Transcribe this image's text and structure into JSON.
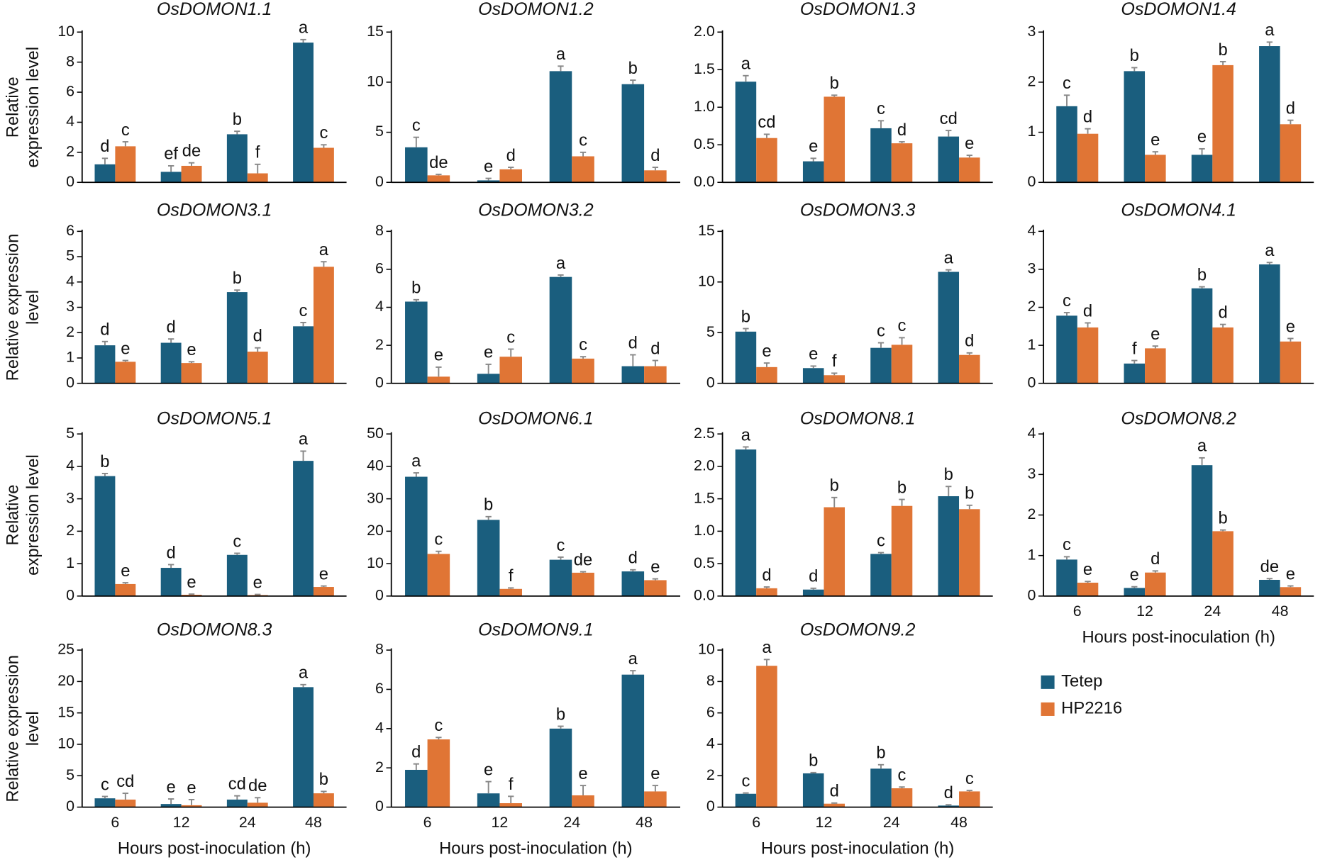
{
  "legend": {
    "series": [
      {
        "name": "Tetep",
        "color": "#1a5e7e"
      },
      {
        "name": "HP2216",
        "color": "#e07535"
      }
    ]
  },
  "chart_data": [
    {
      "type": "bar",
      "title": "OsDOMON1.1",
      "categories": [
        null,
        null,
        null,
        null
      ],
      "ylabel": [
        "Relative",
        "expression level"
      ],
      "ylim": [
        0,
        10
      ],
      "yticks": [
        0,
        2,
        4,
        6,
        8,
        10
      ],
      "series": [
        {
          "values": [
            1.2,
            0.7,
            3.2,
            9.3
          ],
          "errors": [
            0.4,
            0.4,
            0.2,
            0.2
          ],
          "labels": [
            "d",
            "ef",
            "b",
            "a"
          ]
        },
        {
          "values": [
            2.4,
            1.1,
            0.6,
            2.3
          ],
          "errors": [
            0.3,
            0.2,
            0.6,
            0.2
          ],
          "labels": [
            "c",
            "de",
            "f",
            "c"
          ]
        }
      ]
    },
    {
      "type": "bar",
      "title": "OsDOMON1.2",
      "categories": [
        null,
        null,
        null,
        null
      ],
      "ylim": [
        0,
        15
      ],
      "yticks": [
        0,
        5,
        10,
        15
      ],
      "series": [
        {
          "values": [
            3.5,
            0.2,
            11.1,
            9.8
          ],
          "errors": [
            1,
            0.2,
            0.5,
            0.4
          ],
          "labels": [
            "c",
            "e",
            "a",
            "b"
          ]
        },
        {
          "values": [
            0.7,
            1.3,
            2.6,
            1.2
          ],
          "errors": [
            0.1,
            0.2,
            0.4,
            0.3
          ],
          "labels": [
            "de",
            "d",
            "c",
            "d"
          ]
        }
      ]
    },
    {
      "type": "bar",
      "title": "OsDOMON1.3",
      "categories": [
        null,
        null,
        null,
        null
      ],
      "ylim": [
        0,
        2
      ],
      "yticks": [
        {
          "value": 0,
          "label": "0.0"
        },
        0.5,
        {
          "value": 1,
          "label": "1.0"
        },
        1.5,
        {
          "value": 2,
          "label": "2.0"
        }
      ],
      "series": [
        {
          "values": [
            1.34,
            0.28,
            0.72,
            0.61
          ],
          "errors": [
            0.08,
            0.04,
            0.1,
            0.08
          ],
          "labels": [
            "a",
            "e",
            "c",
            "cd"
          ]
        },
        {
          "values": [
            0.59,
            1.14,
            0.52,
            0.33
          ],
          "errors": [
            0.05,
            0.02,
            0.02,
            0.03
          ],
          "labels": [
            "cd",
            "b",
            "d",
            "e"
          ]
        }
      ]
    },
    {
      "type": "bar",
      "title": "OsDOMON1.4",
      "categories": [
        null,
        null,
        null,
        null
      ],
      "ylim": [
        0,
        3
      ],
      "yticks": [
        0,
        1,
        2,
        3
      ],
      "series": [
        {
          "values": [
            1.52,
            2.22,
            0.55,
            2.72
          ],
          "errors": [
            0.22,
            0.07,
            0.12,
            0.08
          ],
          "labels": [
            "c",
            "b",
            "e",
            "a"
          ]
        },
        {
          "values": [
            0.97,
            0.55,
            2.34,
            1.16
          ],
          "errors": [
            0.1,
            0.06,
            0.07,
            0.08
          ],
          "labels": [
            "d",
            "e",
            "b",
            "d"
          ]
        }
      ]
    },
    {
      "type": "bar",
      "title": "OsDOMON3.1",
      "categories": [
        null,
        null,
        null,
        null
      ],
      "ylabel": [
        "Relative expression",
        "level"
      ],
      "ylim": [
        0,
        6
      ],
      "yticks": [
        0,
        1,
        2,
        3,
        4,
        5,
        6
      ],
      "series": [
        {
          "values": [
            1.5,
            1.6,
            3.6,
            2.25
          ],
          "errors": [
            0.15,
            0.15,
            0.08,
            0.15
          ],
          "labels": [
            "d",
            "d",
            "b",
            "c"
          ]
        },
        {
          "values": [
            0.85,
            0.8,
            1.25,
            4.6
          ],
          "errors": [
            0.05,
            0.05,
            0.15,
            0.2
          ],
          "labels": [
            "e",
            "e",
            "d",
            "a"
          ]
        }
      ]
    },
    {
      "type": "bar",
      "title": "OsDOMON3.2",
      "categories": [
        null,
        null,
        null,
        null
      ],
      "ylim": [
        0,
        8
      ],
      "yticks": [
        0,
        2,
        4,
        6,
        8
      ],
      "series": [
        {
          "values": [
            4.3,
            0.5,
            5.6,
            0.9
          ],
          "errors": [
            0.1,
            0.5,
            0.1,
            0.6
          ],
          "labels": [
            "b",
            "e",
            "a",
            "d"
          ]
        },
        {
          "values": [
            0.35,
            1.4,
            1.3,
            0.9
          ],
          "errors": [
            0.5,
            0.4,
            0.1,
            0.3
          ],
          "labels": [
            "e",
            "c",
            "c",
            "d"
          ]
        }
      ]
    },
    {
      "type": "bar",
      "title": "OsDOMON3.3",
      "categories": [
        null,
        null,
        null,
        null
      ],
      "ylim": [
        0,
        15
      ],
      "yticks": [
        0,
        5,
        10,
        15
      ],
      "series": [
        {
          "values": [
            5.1,
            1.5,
            3.5,
            11
          ],
          "errors": [
            0.3,
            0.2,
            0.5,
            0.2
          ],
          "labels": [
            "b",
            "e",
            "c",
            "a"
          ]
        },
        {
          "values": [
            1.6,
            0.8,
            3.8,
            2.8
          ],
          "errors": [
            0.4,
            0.2,
            0.7,
            0.2
          ],
          "labels": [
            "e",
            "f",
            "c",
            "d"
          ]
        }
      ]
    },
    {
      "type": "bar",
      "title": "OsDOMON4.1",
      "categories": [
        null,
        null,
        null,
        null
      ],
      "ylim": [
        0,
        4
      ],
      "yticks": [
        0,
        1,
        2,
        3,
        4
      ],
      "series": [
        {
          "values": [
            1.78,
            0.52,
            2.5,
            3.13
          ],
          "errors": [
            0.08,
            0.08,
            0.04,
            0.05
          ],
          "labels": [
            "c",
            "f",
            "b",
            "a"
          ]
        },
        {
          "values": [
            1.47,
            0.92,
            1.47,
            1.1
          ],
          "errors": [
            0.12,
            0.06,
            0.08,
            0.08
          ],
          "labels": [
            "d",
            "e",
            "d",
            "e"
          ]
        }
      ]
    },
    {
      "type": "bar",
      "title": "OsDOMON5.1",
      "categories": [
        null,
        null,
        null,
        null
      ],
      "ylabel": [
        "Relative",
        "expression level"
      ],
      "ylim": [
        0,
        5
      ],
      "yticks": [
        0,
        1,
        2,
        3,
        4,
        5
      ],
      "series": [
        {
          "values": [
            3.7,
            0.87,
            1.27,
            4.17
          ],
          "errors": [
            0.08,
            0.1,
            0.05,
            0.3
          ],
          "labels": [
            "b",
            "d",
            "c",
            "a"
          ]
        },
        {
          "values": [
            0.37,
            0.04,
            0.03,
            0.28
          ],
          "errors": [
            0.04,
            0.02,
            0.02,
            0.03
          ],
          "labels": [
            "e",
            "e",
            "e",
            "e"
          ]
        }
      ]
    },
    {
      "type": "bar",
      "title": "OsDOMON6.1",
      "categories": [
        null,
        null,
        null,
        null
      ],
      "ylim": [
        0,
        50
      ],
      "yticks": [
        0,
        10,
        20,
        30,
        40,
        50
      ],
      "series": [
        {
          "values": [
            36.8,
            23.5,
            11.2,
            7.6
          ],
          "errors": [
            1.2,
            1,
            0.8,
            0.5
          ],
          "labels": [
            "a",
            "b",
            "c",
            "d"
          ]
        },
        {
          "values": [
            13,
            2.2,
            7.2,
            4.9
          ],
          "errors": [
            0.8,
            0.3,
            0.3,
            0.4
          ],
          "labels": [
            "c",
            "f",
            "de",
            "e"
          ]
        }
      ]
    },
    {
      "type": "bar",
      "title": "OsDOMON8.1",
      "categories": [
        null,
        null,
        null,
        null
      ],
      "ylim": [
        0,
        2.5
      ],
      "yticks": [
        {
          "value": 0,
          "label": "0.0"
        },
        0.5,
        {
          "value": 1,
          "label": "1.0"
        },
        1.5,
        {
          "value": 2,
          "label": "2.0"
        },
        2.5
      ],
      "series": [
        {
          "values": [
            2.26,
            0.1,
            0.65,
            1.54
          ],
          "errors": [
            0.04,
            0.02,
            0.02,
            0.15
          ],
          "labels": [
            "a",
            "d",
            "c",
            "b"
          ]
        },
        {
          "values": [
            0.12,
            1.37,
            1.39,
            1.34
          ],
          "errors": [
            0.02,
            0.15,
            0.1,
            0.06
          ],
          "labels": [
            "d",
            "b",
            "b",
            "b"
          ]
        }
      ]
    },
    {
      "type": "bar",
      "title": "OsDOMON8.2",
      "categories": [
        "6",
        "12",
        "24",
        "48"
      ],
      "xlabel": "Hours post-inoculation (h)",
      "ylim": [
        0,
        4
      ],
      "yticks": [
        0,
        1,
        2,
        3,
        4
      ],
      "series": [
        {
          "values": [
            0.9,
            0.2,
            3.23,
            0.4
          ],
          "errors": [
            0.07,
            0.03,
            0.18,
            0.03
          ],
          "labels": [
            "c",
            "e",
            "a",
            "de"
          ]
        },
        {
          "values": [
            0.33,
            0.58,
            1.6,
            0.22
          ],
          "errors": [
            0.03,
            0.04,
            0.03,
            0.03
          ],
          "labels": [
            "e",
            "d",
            "b",
            "e"
          ]
        }
      ]
    },
    {
      "type": "bar",
      "title": "OsDOMON8.3",
      "categories": [
        "6",
        "12",
        "24",
        "48"
      ],
      "xlabel": "Hours post-inoculation (h)",
      "ylabel": [
        "Relative expression",
        "level"
      ],
      "ylim": [
        0,
        25
      ],
      "yticks": [
        0,
        5,
        10,
        15,
        20,
        25
      ],
      "series": [
        {
          "values": [
            1.4,
            0.5,
            1.2,
            19.1
          ],
          "errors": [
            0.3,
            0.8,
            0.6,
            0.4
          ],
          "labels": [
            "c",
            "e",
            "cd",
            "a"
          ]
        },
        {
          "values": [
            1.2,
            0.3,
            0.7,
            2.2
          ],
          "errors": [
            1,
            0.9,
            0.8,
            0.3
          ],
          "labels": [
            "cd",
            "e",
            "de",
            "b"
          ]
        }
      ]
    },
    {
      "type": "bar",
      "title": "OsDOMON9.1",
      "categories": [
        "6",
        "12",
        "24",
        "48"
      ],
      "xlabel": "Hours post-inoculation (h)",
      "ylim": [
        0,
        8
      ],
      "yticks": [
        0,
        2,
        4,
        6,
        8
      ],
      "series": [
        {
          "values": [
            1.9,
            0.7,
            4.0,
            6.75
          ],
          "errors": [
            0.3,
            0.6,
            0.12,
            0.2
          ],
          "labels": [
            "d",
            "e",
            "b",
            "a"
          ]
        },
        {
          "values": [
            3.45,
            0.2,
            0.6,
            0.8
          ],
          "errors": [
            0.1,
            0.35,
            0.5,
            0.3
          ],
          "labels": [
            "c",
            "f",
            "e",
            "e"
          ]
        }
      ]
    },
    {
      "type": "bar",
      "title": "OsDOMON9.2",
      "categories": [
        "6",
        "12",
        "24",
        "48"
      ],
      "xlabel": "Hours post-inoculation (h)",
      "ylim": [
        0,
        10
      ],
      "yticks": [
        0,
        2,
        4,
        6,
        8,
        10
      ],
      "series": [
        {
          "values": [
            0.85,
            2.15,
            2.45,
            0.1
          ],
          "errors": [
            0.05,
            0.05,
            0.25,
            0.05
          ],
          "labels": [
            "c",
            "b",
            "b",
            "d"
          ]
        },
        {
          "values": [
            9.0,
            0.22,
            1.2,
            1.0
          ],
          "errors": [
            0.4,
            0.04,
            0.08,
            0.06
          ],
          "labels": [
            "a",
            "d",
            "c",
            "c"
          ]
        }
      ]
    }
  ]
}
